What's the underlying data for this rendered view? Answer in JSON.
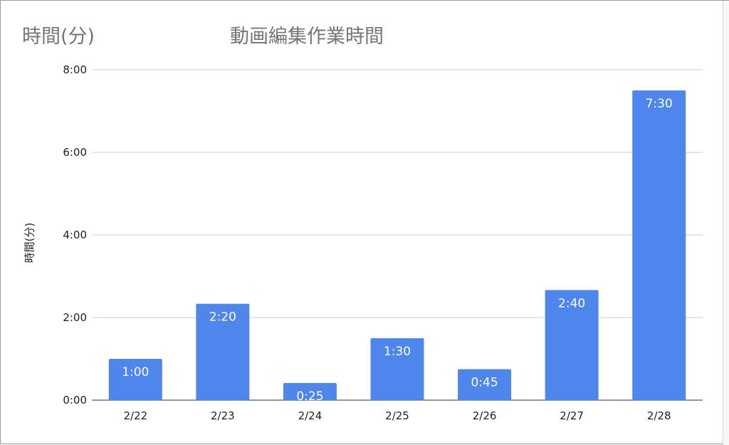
{
  "header": {
    "corner_label": "時間(分)",
    "title": "動画編集作業時間"
  },
  "chart_data": {
    "type": "bar",
    "title": "動画編集作業時間",
    "xlabel": "",
    "ylabel": "時間(分)",
    "categories": [
      "2/22",
      "2/23",
      "2/24",
      "2/25",
      "2/26",
      "2/27",
      "2/28"
    ],
    "values": [
      60,
      140,
      25,
      90,
      45,
      160,
      450
    ],
    "value_labels": [
      "1:00",
      "2:20",
      "0:25",
      "1:30",
      "0:45",
      "2:40",
      "7:30"
    ],
    "ylim": [
      0,
      480
    ],
    "yticks": [
      0,
      120,
      240,
      360,
      480
    ],
    "ytick_labels": [
      "0:00",
      "2:00",
      "4:00",
      "6:00",
      "8:00"
    ],
    "grid": true,
    "legend": "none",
    "colors": {
      "bar": "#4f86ec",
      "gridline": "#cccccc",
      "title": "#757575",
      "axis_text": "#222222",
      "bar_label": "#ffffff"
    }
  }
}
